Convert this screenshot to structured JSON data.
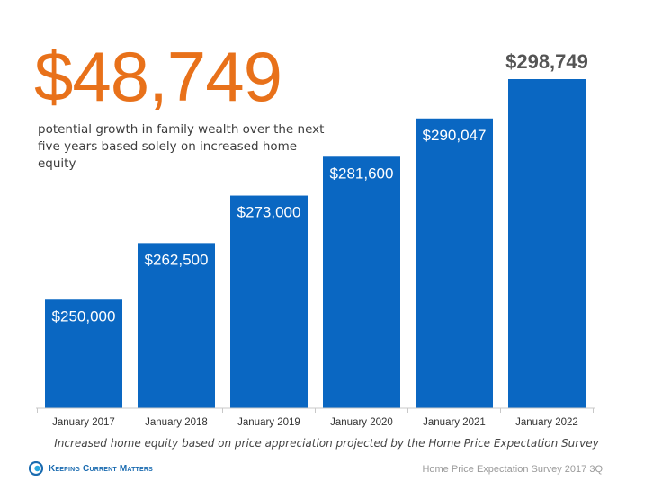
{
  "headline": {
    "amount": "$48,749",
    "description": "potential growth in family wealth over the next five years based solely on increased home equity"
  },
  "chart_data": {
    "type": "bar",
    "categories": [
      "January 2017",
      "January 2018",
      "January 2019",
      "January 2020",
      "January 2021",
      "January 2022"
    ],
    "values": [
      250000,
      262500,
      273000,
      281600,
      290047,
      298749
    ],
    "data_labels": [
      "$250,000",
      "$262,500",
      "$273,000",
      "$281,600",
      "$290,047",
      "$298,749"
    ],
    "title": "",
    "xlabel": "",
    "ylabel": "",
    "ylim": [
      226000,
      298749
    ],
    "grid": false,
    "legend": "none",
    "bar_color": "#0A67C2",
    "highlight_label_color": "#555555"
  },
  "caption": "Increased home equity based on price appreciation projected by the Home Price Expectation Survey",
  "footer": {
    "brand": "Keeping Current Matters",
    "brand_icon": "kcm-logo-icon",
    "brand_color": "#1a6bb0",
    "source": "Home Price Expectation Survey 2017 3Q"
  },
  "colors": {
    "accent": "#E8711A",
    "bar": "#0A67C2"
  }
}
